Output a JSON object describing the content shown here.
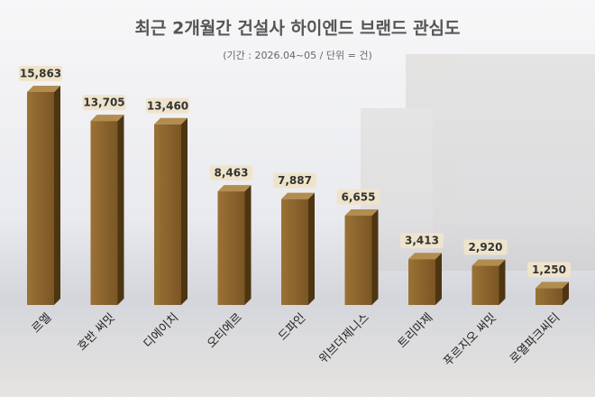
{
  "chart_data": {
    "type": "bar",
    "title": "최근 2개월간 건설사 하이엔드 브랜드 관심도",
    "subtitle": "(기간 : 2026.04~05 / 단위 = 건)",
    "categories": [
      "르엘",
      "호반 써밋",
      "디에이치",
      "오티에르",
      "드파인",
      "위브더제니스",
      "트리마제",
      "푸르지오 써밋",
      "로열파크씨티"
    ],
    "values": [
      15863,
      13705,
      13460,
      8463,
      7887,
      6655,
      3413,
      2920,
      1250
    ],
    "value_labels": [
      "15,863",
      "13,705",
      "13,460",
      "8,463",
      "7,887",
      "6,655",
      "3,413",
      "2,920",
      "1,250"
    ],
    "color": "#7a5624"
  }
}
